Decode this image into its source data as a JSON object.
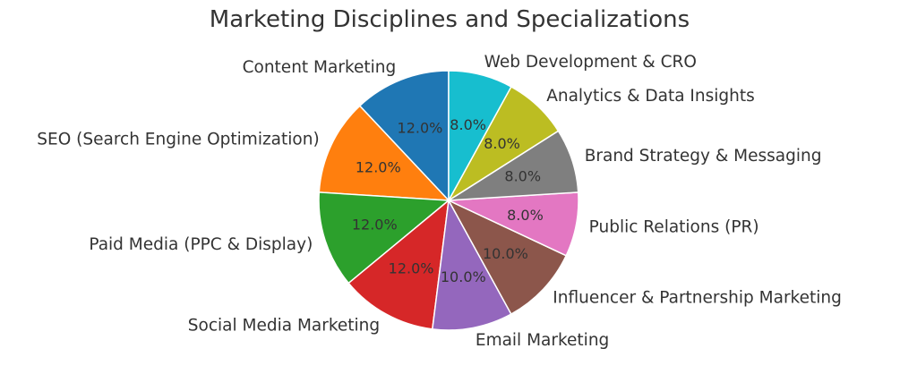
{
  "chart_data": {
    "type": "pie",
    "title": "Marketing Disciplines and Specializations",
    "start_angle_deg": 90,
    "direction": "counterclockwise",
    "legend": "none",
    "slices": [
      {
        "label": "Content Marketing",
        "value": 12.0,
        "pct_text": "12.0%",
        "color": "#1f77b4"
      },
      {
        "label": "SEO (Search Engine Optimization)",
        "value": 12.0,
        "pct_text": "12.0%",
        "color": "#ff7f0e"
      },
      {
        "label": "Paid Media (PPC & Display)",
        "value": 12.0,
        "pct_text": "12.0%",
        "color": "#2ca02c"
      },
      {
        "label": "Social Media Marketing",
        "value": 12.0,
        "pct_text": "12.0%",
        "color": "#d62728"
      },
      {
        "label": "Email Marketing",
        "value": 10.0,
        "pct_text": "10.0%",
        "color": "#9467bd"
      },
      {
        "label": "Influencer & Partnership Marketing",
        "value": 10.0,
        "pct_text": "10.0%",
        "color": "#8c564b"
      },
      {
        "label": "Public Relations (PR)",
        "value": 8.0,
        "pct_text": "8.0%",
        "color": "#e377c2"
      },
      {
        "label": "Brand Strategy & Messaging",
        "value": 8.0,
        "pct_text": "8.0%",
        "color": "#7f7f7f"
      },
      {
        "label": "Analytics & Data Insights",
        "value": 8.0,
        "pct_text": "8.0%",
        "color": "#bcbd22"
      },
      {
        "label": "Web Development & CRO",
        "value": 8.0,
        "pct_text": "8.0%",
        "color": "#17becf"
      }
    ]
  }
}
